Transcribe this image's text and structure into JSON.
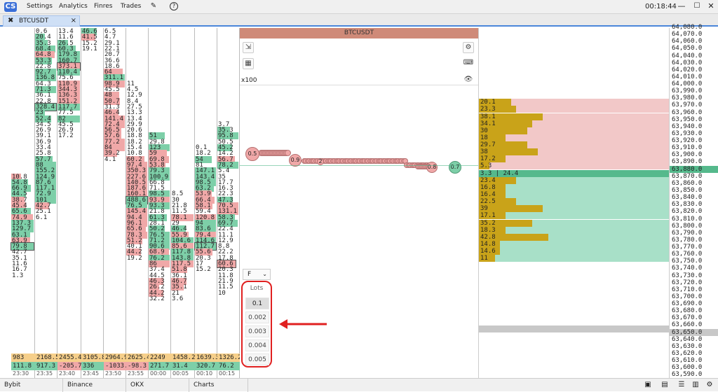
{
  "menu": {
    "items": [
      "Settings",
      "Analytics",
      "Finres",
      "Trades"
    ],
    "clock": "00:18:44"
  },
  "tab": {
    "label": "BTCUSDT",
    "close": "×"
  },
  "chart": {
    "title": "BTCUSDT",
    "x100": "x100",
    "select_value": "F",
    "select_arrow": "⌄",
    "lots_label": "Lots",
    "lots": [
      "0.1",
      "0.002",
      "0.003",
      "0.004",
      "0.005"
    ],
    "bubbles": [
      "0.5",
      "0.9",
      "2",
      "0.8",
      "0.7"
    ]
  },
  "dom": {
    "ask_rows": [
      "20.1",
      "23.3",
      "38.1",
      "34.1",
      "30",
      "18",
      "29.7",
      "38",
      "17.2",
      "5.3"
    ],
    "ask_fill": [
      0.06,
      0.07,
      0.12,
      0.1,
      0.09,
      0.05,
      0.09,
      0.11,
      0.05,
      0.02
    ],
    "current": {
      "left": "3.3",
      "right": "24.4"
    },
    "bid_rows": [
      "23.4",
      "16.8",
      "16.4",
      "22.5",
      "39",
      "17.1",
      "35.2",
      "18.3",
      "42.8",
      "14.8",
      "14.6",
      "11"
    ],
    "bid_fill": [
      0.07,
      0.05,
      0.05,
      0.07,
      0.12,
      0.05,
      0.1,
      0.05,
      0.13,
      0.04,
      0.04,
      0.03
    ]
  },
  "prices": [
    "64,080.0",
    "64,070.0",
    "64,060.0",
    "64,050.0",
    "64,040.0",
    "64,030.0",
    "64,020.0",
    "64,010.0",
    "64,000.0",
    "63,990.0",
    "63,980.0",
    "63,970.0",
    "63,960.0",
    "63,950.0",
    "63,940.0",
    "63,930.0",
    "63,920.0",
    "63,910.0",
    "63,900.0",
    "63,890.0",
    "63,880.0",
    "63,870.0",
    "63,860.0",
    "63,850.0",
    "63,840.0",
    "63,830.0",
    "63,820.0",
    "63,810.0",
    "63,800.0",
    "63,790.0",
    "63,780.0",
    "63,770.0",
    "63,760.0",
    "63,750.0",
    "63,740.0",
    "63,730.0",
    "63,720.0",
    "63,710.0",
    "63,700.0",
    "63,690.0",
    "63,680.0",
    "63,670.0",
    "63,660.0",
    "63,650.0",
    "63,640.0",
    "63,630.0",
    "63,620.0",
    "63,610.0",
    "63,600.0",
    "63,590.0",
    "63,580.0"
  ],
  "clusters": [
    {
      "time": "23:30",
      "total": "983",
      "delta": "111.8",
      "delta_color": "g",
      "start": 25,
      "cells": [
        [
          "10.8",
          "r"
        ],
        [
          "54.8",
          "g"
        ],
        [
          "66.9",
          "g"
        ],
        [
          "44.5",
          "g"
        ],
        [
          "38.7",
          "r"
        ],
        [
          "45.4",
          "r"
        ],
        [
          "65.6",
          "g"
        ],
        [
          "74.9",
          "r"
        ],
        [
          "137.3",
          "g"
        ],
        [
          "129.7",
          "g"
        ],
        [
          "63.1",
          "g"
        ],
        [
          "63.9",
          "r"
        ],
        [
          "79.8",
          "gb"
        ],
        [
          "42.7",
          "n"
        ],
        [
          "35.1",
          "n"
        ],
        [
          "11.6",
          "n"
        ],
        [
          "16.7",
          "n"
        ],
        [
          "1.3",
          "n"
        ]
      ]
    },
    {
      "time": "23:35",
      "total": "2168.5",
      "delta": "917.3",
      "delta_color": "g",
      "start": 0,
      "cells": [
        [
          "0.6",
          "n"
        ],
        [
          "20.4",
          "g"
        ],
        [
          "35.3",
          "g"
        ],
        [
          "68.4",
          "g"
        ],
        [
          "64.8",
          "r"
        ],
        [
          "53.3",
          "g"
        ],
        [
          "22.8",
          "n"
        ],
        [
          "92.7",
          "g"
        ],
        [
          "136.8",
          "g"
        ],
        [
          "64.3",
          "n"
        ],
        [
          "71.3",
          "g"
        ],
        [
          "36.1",
          "n"
        ],
        [
          "22.8",
          "n"
        ],
        [
          "328.4",
          "gb"
        ],
        [
          "23",
          "g"
        ],
        [
          "52.4",
          "g"
        ],
        [
          "34.5",
          "n"
        ],
        [
          "26.9",
          "n"
        ],
        [
          "39.1",
          "n"
        ],
        [
          "36.9",
          "n"
        ],
        [
          "33.4",
          "n"
        ],
        [
          "25.8",
          "n"
        ],
        [
          "57.7",
          "g"
        ],
        [
          "88",
          "g"
        ],
        [
          "155.2",
          "g"
        ],
        [
          "124.9",
          "g"
        ],
        [
          "87.6",
          "g"
        ],
        [
          "117.1",
          "g"
        ],
        [
          "72.9",
          "g"
        ],
        [
          "101",
          "g"
        ],
        [
          "42.7",
          "r"
        ],
        [
          "25.1",
          "n"
        ],
        [
          "6.1",
          "n"
        ]
      ]
    },
    {
      "time": "23:40",
      "total": "2455.4",
      "delta": "-205.7",
      "delta_color": "r",
      "start": 0,
      "cells": [
        [
          "13.4",
          "n"
        ],
        [
          "11.6",
          "n"
        ],
        [
          "26.5",
          "g"
        ],
        [
          "60.3",
          "g"
        ],
        [
          "179.8",
          "g"
        ],
        [
          "160.7",
          "g"
        ],
        [
          "373.1",
          "rb"
        ],
        [
          "110.4",
          "g"
        ],
        [
          "75.6",
          "n"
        ],
        [
          "110.9",
          "r"
        ],
        [
          "344.3",
          "r"
        ],
        [
          "136.3",
          "r"
        ],
        [
          "151.2",
          "r"
        ],
        [
          "117.7",
          "g"
        ],
        [
          "77.5",
          "n"
        ],
        [
          "82",
          "g"
        ],
        [
          "45.5",
          "n"
        ],
        [
          "26.9",
          "n"
        ],
        [
          "17.2",
          "n"
        ]
      ]
    },
    {
      "time": "23:45",
      "total": "3105.8",
      "delta": "336",
      "delta_color": "g",
      "start": 0,
      "cells": [
        [
          "46.6",
          "g"
        ],
        [
          "41.5",
          "r"
        ],
        [
          "15.2",
          "n"
        ],
        [
          "19.1",
          "n"
        ]
      ]
    },
    {
      "time": "23:50",
      "total": "2964.9",
      "delta": "-1033.",
      "delta_color": "r",
      "start": 0,
      "cells": [
        [
          "6.5",
          "n"
        ],
        [
          "4.7",
          "n"
        ],
        [
          "29.1",
          "n"
        ],
        [
          "22.1",
          "n"
        ],
        [
          "20.7",
          "n"
        ],
        [
          "36.6",
          "n"
        ],
        [
          "18.6",
          "n"
        ],
        [
          "64",
          "r"
        ],
        [
          "311.1",
          "g"
        ],
        [
          "98.9",
          "r"
        ],
        [
          "45.5",
          "n"
        ],
        [
          "48",
          "r"
        ],
        [
          "50.7",
          "r"
        ],
        [
          "31.3",
          "n"
        ],
        [
          "46.4",
          "r"
        ],
        [
          "141.4",
          "r"
        ],
        [
          "72.4",
          "r"
        ],
        [
          "56.5",
          "r"
        ],
        [
          "57.6",
          "r"
        ],
        [
          "77.2",
          "r"
        ],
        [
          "84",
          "r"
        ],
        [
          "39.2",
          "r"
        ],
        [
          "4.1",
          "n"
        ]
      ]
    },
    {
      "time": "23:55",
      "total": "2625.4",
      "delta": "-98.3",
      "delta_color": "r",
      "start": 9,
      "cells": [
        [
          "11",
          "n"
        ],
        [
          "4.5",
          "n"
        ],
        [
          "12.9",
          "n"
        ],
        [
          "8.4",
          "n"
        ],
        [
          "27.5",
          "n"
        ],
        [
          "13.3",
          "n"
        ],
        [
          "13.4",
          "n"
        ],
        [
          "29.9",
          "n"
        ],
        [
          "20.6",
          "n"
        ],
        [
          "18.8",
          "n"
        ],
        [
          "18.2",
          "n"
        ],
        [
          "15.4",
          "n"
        ],
        [
          "10.8",
          "n"
        ],
        [
          "60.2",
          "r"
        ],
        [
          "97.4",
          "r"
        ],
        [
          "350.3",
          "r"
        ],
        [
          "227.6",
          "r"
        ],
        [
          "140.5",
          "r"
        ],
        [
          "187.6",
          "r"
        ],
        [
          "160.1",
          "r"
        ],
        [
          "488.6",
          "gb"
        ],
        [
          "76.5",
          "g"
        ],
        [
          "145.4",
          "r"
        ],
        [
          "94.4",
          "r"
        ],
        [
          "96.1",
          "r"
        ],
        [
          "65.6",
          "r"
        ],
        [
          "78.3",
          "r"
        ],
        [
          "51.2",
          "r"
        ],
        [
          "40.1",
          "n"
        ],
        [
          "44.2",
          "r"
        ],
        [
          "19.2",
          "n"
        ]
      ]
    },
    {
      "time": "00:00",
      "total": "2249",
      "delta": "271.7",
      "delta_color": "g",
      "start": 18,
      "cells": [
        [
          "51",
          "g"
        ],
        [
          "29.8",
          "n"
        ],
        [
          "123",
          "g"
        ],
        [
          "59",
          "r"
        ],
        [
          "69.8",
          "r"
        ],
        [
          "53.8",
          "r"
        ],
        [
          "79.3",
          "g"
        ],
        [
          "100.9",
          "g"
        ],
        [
          "66.8",
          "n"
        ],
        [
          "71.5",
          "n"
        ],
        [
          "98.5",
          "g"
        ],
        [
          "93.9",
          "r"
        ],
        [
          "93.3",
          "g"
        ],
        [
          "21.8",
          "n"
        ],
        [
          "61.3",
          "g"
        ],
        [
          "28.1",
          "n"
        ],
        [
          "50.2",
          "g"
        ],
        [
          "76.5",
          "g"
        ],
        [
          "71.2",
          "g"
        ],
        [
          "90.6",
          "g"
        ],
        [
          "68.9",
          "r"
        ],
        [
          "76.2",
          "g"
        ],
        [
          "86",
          "r"
        ],
        [
          "37.4",
          "n"
        ],
        [
          "44.5",
          "n"
        ],
        [
          "46.3",
          "r"
        ],
        [
          "26.2",
          "r"
        ],
        [
          "44.2",
          "r"
        ],
        [
          "32.2",
          "n"
        ]
      ]
    },
    {
      "time": "00:05",
      "total": "1458.2",
      "delta": "31.4",
      "delta_color": "g",
      "start": 28,
      "cells": [
        [
          "8.5",
          "n"
        ],
        [
          "30",
          "n"
        ],
        [
          "21.8",
          "n"
        ],
        [
          "11.5",
          "n"
        ],
        [
          "78.1",
          "r"
        ],
        [
          "29",
          "n"
        ],
        [
          "46.4",
          "g"
        ],
        [
          "55.9",
          "r"
        ],
        [
          "104.6",
          "g"
        ],
        [
          "85.6",
          "r"
        ],
        [
          "117.8",
          "g"
        ],
        [
          "143.8",
          "g"
        ],
        [
          "117.5",
          "r"
        ],
        [
          "51.8",
          "r"
        ],
        [
          "36.1",
          "n"
        ],
        [
          "46.7",
          "r"
        ],
        [
          "35.1",
          "r"
        ],
        [
          "21",
          "n"
        ],
        [
          "3.6",
          "n"
        ]
      ]
    },
    {
      "time": "00:10",
      "total": "1639.3",
      "delta": "320.7",
      "delta_color": "g",
      "start": 20,
      "cells": [
        [
          "0.1",
          "n"
        ],
        [
          "18.2",
          "n"
        ],
        [
          "54",
          "g"
        ],
        [
          "81",
          "n"
        ],
        [
          "147.1",
          "g"
        ],
        [
          "143.4",
          "g"
        ],
        [
          "98.5",
          "g"
        ],
        [
          "63.2",
          "g"
        ],
        [
          "53.9",
          "r"
        ],
        [
          "66.4",
          "r"
        ],
        [
          "58.1",
          "r"
        ],
        [
          "59.4",
          "n"
        ],
        [
          "120.8",
          "r"
        ],
        [
          "94",
          "g"
        ],
        [
          "83.6",
          "g"
        ],
        [
          "79.4",
          "r"
        ],
        [
          "114.6",
          "g"
        ],
        [
          "112.7",
          "gb"
        ],
        [
          "55.6",
          "r"
        ],
        [
          "20.3",
          "n"
        ],
        [
          "17",
          "n"
        ],
        [
          "15.2",
          "n"
        ]
      ]
    },
    {
      "time": "00:15",
      "total": "1326.2",
      "delta": "76.2",
      "delta_color": "g",
      "start": 16,
      "cells": [
        [
          "3.7",
          "n"
        ],
        [
          "35.3",
          "g"
        ],
        [
          "95.8",
          "g"
        ],
        [
          "50.5",
          "n"
        ],
        [
          "45.2",
          "g"
        ],
        [
          "14.2",
          "n"
        ],
        [
          "56.7",
          "r"
        ],
        [
          "78.2",
          "g"
        ],
        [
          "5.4",
          "n"
        ],
        [
          "35",
          "n"
        ],
        [
          "17.7",
          "n"
        ],
        [
          "16.3",
          "n"
        ],
        [
          "22.3",
          "n"
        ],
        [
          "47.3",
          "g"
        ],
        [
          "70.5",
          "r"
        ],
        [
          "131.1",
          "r"
        ],
        [
          "58.3",
          "g"
        ],
        [
          "69.7",
          "g"
        ],
        [
          "22.4",
          "n"
        ],
        [
          "11.1",
          "n"
        ],
        [
          "12.9",
          "n"
        ],
        [
          "8.8",
          "n"
        ],
        [
          "22.2",
          "n"
        ],
        [
          "17.8",
          "n"
        ],
        [
          "60.6",
          "rb"
        ],
        [
          "20.3",
          "n"
        ],
        [
          "11.8",
          "n"
        ],
        [
          "21.9",
          "n"
        ],
        [
          "11.5",
          "n"
        ],
        [
          "10",
          "n"
        ]
      ]
    }
  ],
  "bottom": {
    "tabs": [
      "Bybit",
      "Binance",
      "OKX",
      "Charts"
    ]
  },
  "colors": {
    "green": "#7dcfa8",
    "red": "#f0a8a8",
    "gold": "#c9a319",
    "accent": "#4a86d9"
  }
}
